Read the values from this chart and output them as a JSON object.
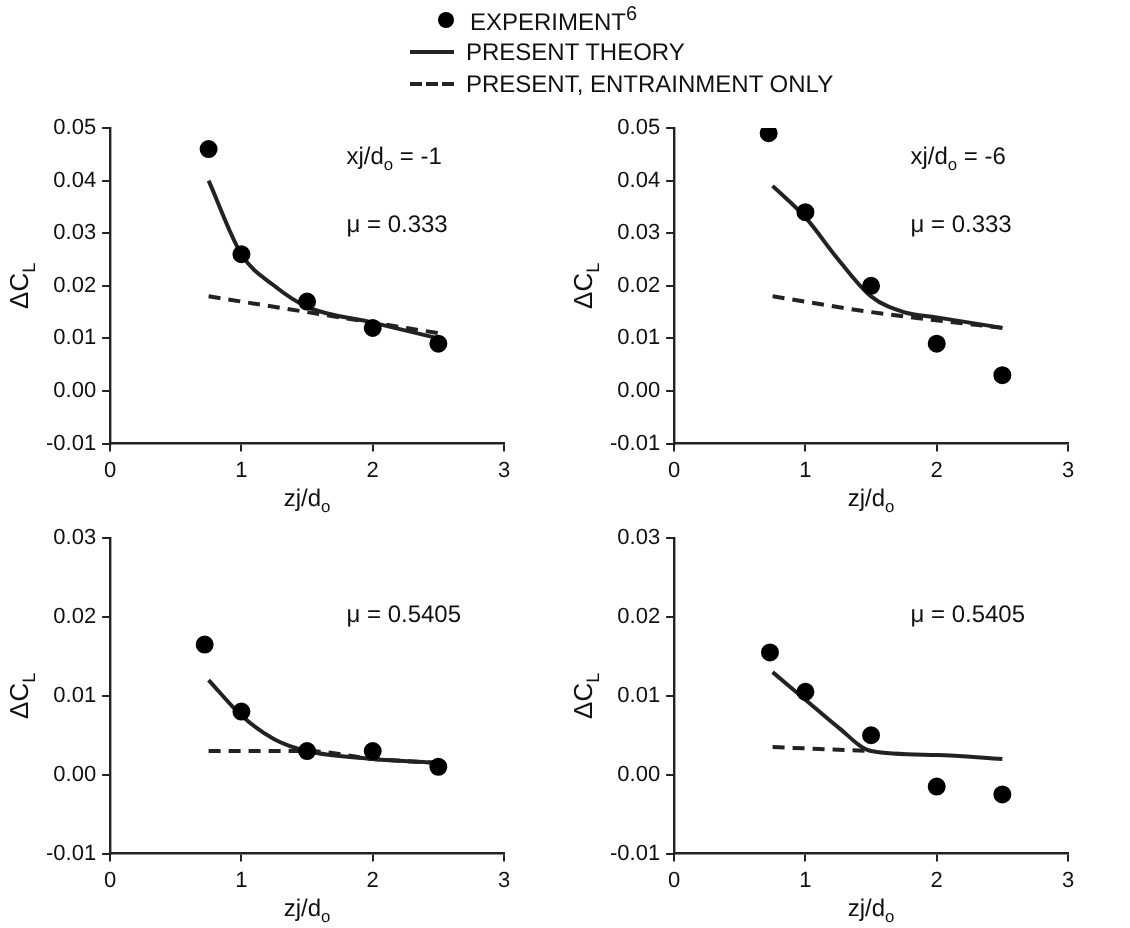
{
  "chart_data": [
    {
      "type": "line",
      "xlabel": "zj/d$_{o}$",
      "ylabel": "ΔC$_{L}$",
      "annotations": [
        "xj/d$_{o}$ = -1",
        "μ = 0.333"
      ],
      "legend": "top",
      "grid": false,
      "xlim": [
        0,
        3
      ],
      "xticks": [
        0,
        1,
        2,
        3
      ],
      "ylim": [
        -0.01,
        0.05
      ],
      "yticks": [
        {
          "value": -0.01,
          "label": "-0.01"
        },
        {
          "value": 0,
          "label": "0.00"
        },
        {
          "value": 0.01,
          "label": "0.01"
        },
        {
          "value": 0.02,
          "label": "0.02"
        },
        {
          "value": 0.03,
          "label": "0.03"
        },
        {
          "value": 0.04,
          "label": "0.04"
        },
        {
          "value": 0.05,
          "label": "0.05"
        }
      ],
      "series": [
        {
          "name": "EXPERIMENT$^{6}$",
          "type": "scatter",
          "marker": "circle",
          "color": "#000000",
          "x": [
            0.75,
            1,
            1.5,
            2,
            2.5
          ],
          "values": [
            0.046,
            0.026,
            0.017,
            0.012,
            0.009
          ]
        },
        {
          "name": "PRESENT THEORY",
          "type": "line",
          "line_style": "solid",
          "color": "#222222",
          "x": [
            0.75,
            1,
            1.25,
            1.5,
            2,
            2.5
          ],
          "values": [
            0.04,
            0.026,
            0.02,
            0.016,
            0.013,
            0.01
          ]
        },
        {
          "name": "PRESENT, ENTRAINMENT ONLY",
          "type": "line",
          "line_style": "dashed",
          "color": "#222222",
          "x": [
            0.75,
            1.5,
            2,
            2.5
          ],
          "values": [
            0.018,
            0.015,
            0.013,
            0.011
          ]
        }
      ]
    },
    {
      "type": "line",
      "xlabel": "zj/d$_{o}$",
      "ylabel": "ΔC$_{L}$",
      "annotations": [
        "xj/d$_{o}$ = -6",
        "μ = 0.333"
      ],
      "grid": false,
      "xlim": [
        0,
        3
      ],
      "xticks": [
        0,
        1,
        2,
        3
      ],
      "ylim": [
        -0.01,
        0.05
      ],
      "yticks": [
        {
          "value": -0.01,
          "label": "-0.01"
        },
        {
          "value": 0,
          "label": "0.00"
        },
        {
          "value": 0.01,
          "label": "0.01"
        },
        {
          "value": 0.02,
          "label": "0.02"
        },
        {
          "value": 0.03,
          "label": "0.03"
        },
        {
          "value": 0.04,
          "label": "0.04"
        },
        {
          "value": 0.05,
          "label": "0.05"
        }
      ],
      "series": [
        {
          "type": "scatter",
          "marker": "circle",
          "color": "#000000",
          "x": [
            0.72,
            1,
            1.5,
            2,
            2.5
          ],
          "values": [
            0.049,
            0.034,
            0.02,
            0.009,
            0.003
          ]
        },
        {
          "type": "line",
          "line_style": "solid",
          "color": "#222222",
          "x": [
            0.75,
            1,
            1.25,
            1.5,
            1.75,
            2,
            2.5
          ],
          "values": [
            0.039,
            0.033,
            0.025,
            0.018,
            0.015,
            0.014,
            0.012
          ]
        },
        {
          "type": "line",
          "line_style": "dashed",
          "color": "#222222",
          "x": [
            0.75,
            1.5,
            2.5
          ],
          "values": [
            0.018,
            0.015,
            0.012
          ]
        }
      ]
    },
    {
      "type": "line",
      "xlabel": "zj/d$_{o}$",
      "ylabel": "ΔC$_{L}$",
      "annotations": [
        "μ = 0.5405"
      ],
      "grid": false,
      "xlim": [
        0,
        3
      ],
      "xticks": [
        0,
        1,
        2,
        3
      ],
      "ylim": [
        -0.01,
        0.03
      ],
      "yticks": [
        {
          "value": -0.01,
          "label": "-0.01"
        },
        {
          "value": 0,
          "label": "0.00"
        },
        {
          "value": 0.01,
          "label": "0.01"
        },
        {
          "value": 0.02,
          "label": "0.02"
        },
        {
          "value": 0.03,
          "label": "0.03"
        }
      ],
      "series": [
        {
          "type": "scatter",
          "marker": "circle",
          "color": "#000000",
          "x": [
            0.72,
            1,
            1.5,
            2,
            2.5
          ],
          "values": [
            0.0165,
            0.008,
            0.003,
            0.003,
            0.001
          ]
        },
        {
          "type": "line",
          "line_style": "solid",
          "color": "#222222",
          "x": [
            0.75,
            1,
            1.25,
            1.5,
            2,
            2.5
          ],
          "values": [
            0.012,
            0.0075,
            0.0045,
            0.003,
            0.002,
            0.0015
          ]
        },
        {
          "type": "line",
          "line_style": "dashed",
          "color": "#222222",
          "x": [
            0.75,
            1.5,
            2,
            2.5
          ],
          "values": [
            0.003,
            0.003,
            0.002,
            0.0015
          ]
        }
      ]
    },
    {
      "type": "line",
      "xlabel": "zj/d$_{o}$",
      "ylabel": "ΔC$_{L}$",
      "annotations": [
        "μ = 0.5405"
      ],
      "grid": false,
      "xlim": [
        0,
        3
      ],
      "xticks": [
        0,
        1,
        2,
        3
      ],
      "ylim": [
        -0.01,
        0.03
      ],
      "yticks": [
        {
          "value": -0.01,
          "label": "-0.01"
        },
        {
          "value": 0,
          "label": "0.00"
        },
        {
          "value": 0.01,
          "label": "0.01"
        },
        {
          "value": 0.02,
          "label": "0.02"
        },
        {
          "value": 0.03,
          "label": "0.03"
        }
      ],
      "series": [
        {
          "type": "scatter",
          "marker": "circle",
          "color": "#000000",
          "x": [
            0.73,
            1,
            1.5,
            2,
            2.5
          ],
          "values": [
            0.0155,
            0.0105,
            0.005,
            -0.0015,
            -0.0025
          ]
        },
        {
          "type": "line",
          "line_style": "solid",
          "color": "#222222",
          "x": [
            0.75,
            1,
            1.25,
            1.5,
            2,
            2.5
          ],
          "values": [
            0.013,
            0.0095,
            0.006,
            0.003,
            0.0025,
            0.002
          ]
        },
        {
          "type": "line",
          "line_style": "dashed",
          "color": "#222222",
          "x": [
            0.75,
            1.5
          ],
          "values": [
            0.0035,
            0.003
          ]
        }
      ]
    }
  ]
}
